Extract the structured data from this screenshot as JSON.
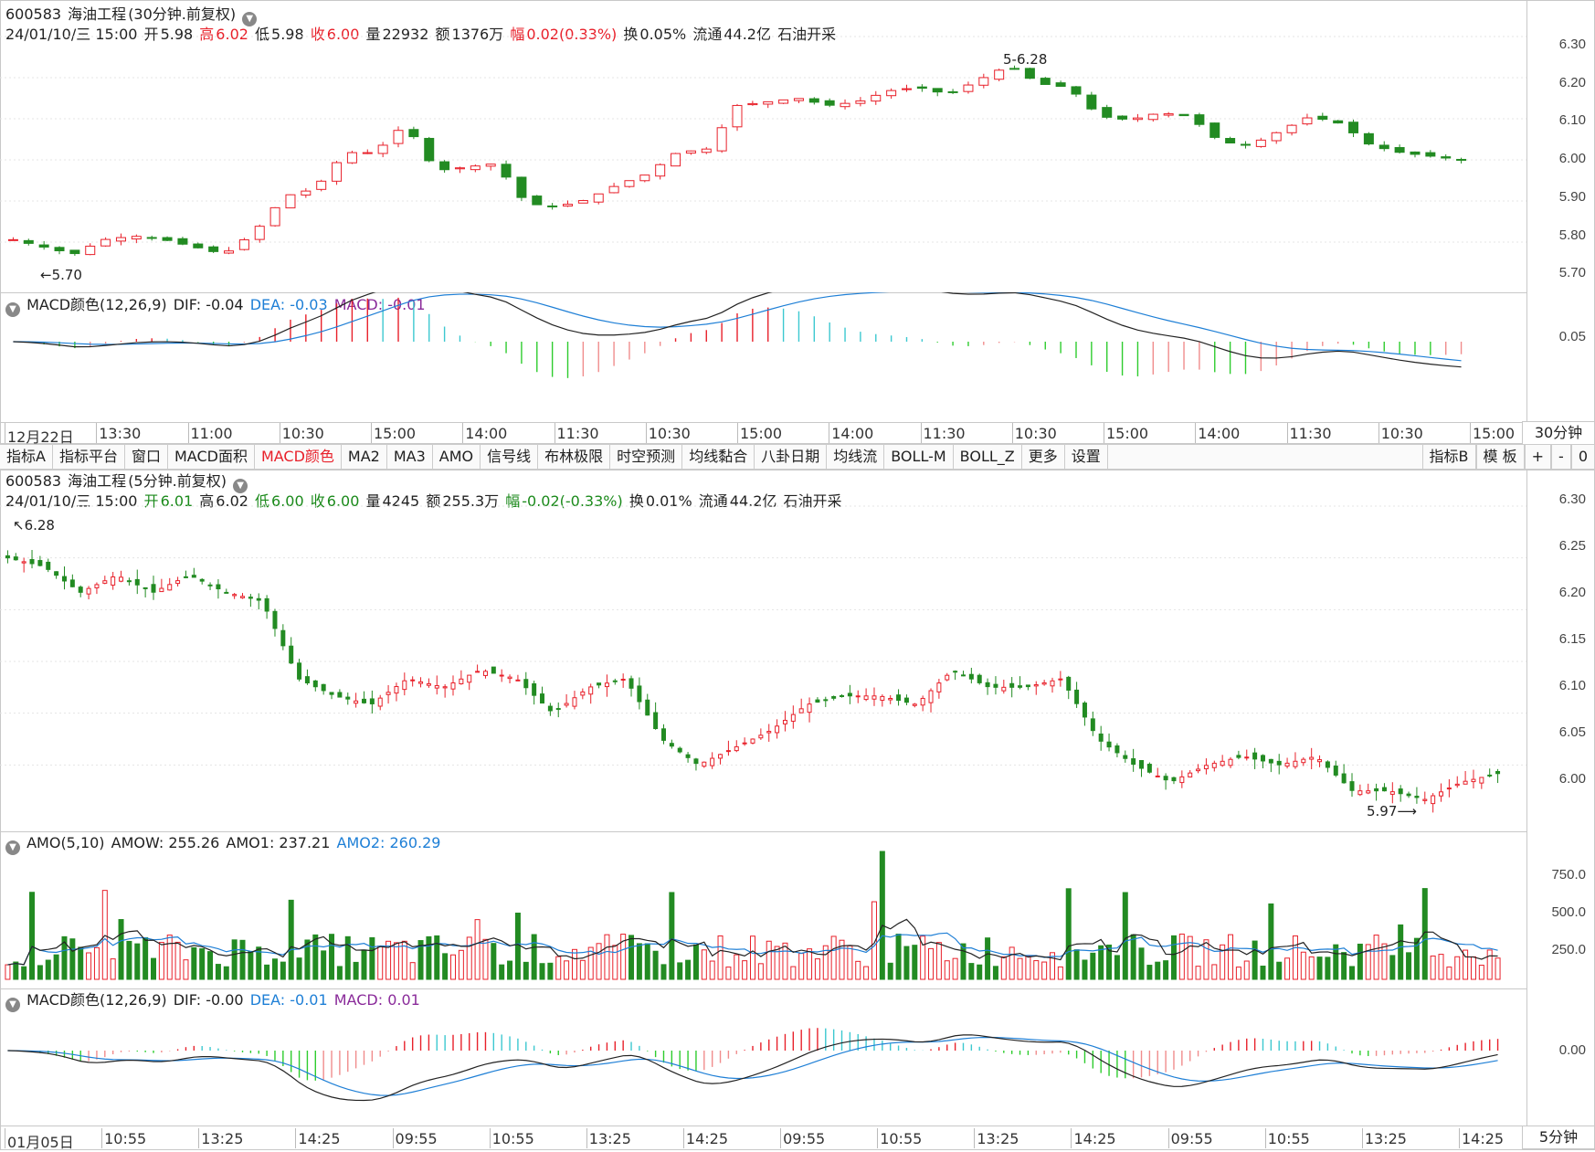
{
  "top_chart": {
    "header1": {
      "code": "600583",
      "name": "海油工程",
      "mode": "(30分钟.前复权)"
    },
    "header2": {
      "date": "24/01/10/三 15:00",
      "open_label": "开",
      "open": "5.98",
      "high_label": "高",
      "high": "6.02",
      "low_label": "低",
      "low": "5.98",
      "close_label": "收",
      "close": "6.00",
      "vol_label": "量",
      "vol": "22932",
      "amt_label": "额",
      "amt": "1376万",
      "chg_label": "幅",
      "chg": "0.02(0.33%)",
      "turn_label": "换",
      "turn": "0.05%",
      "float_label": "流通",
      "float": "44.2亿",
      "industry": "石油开采"
    },
    "y_ticks": [
      "6.30",
      "6.20",
      "6.10",
      "6.00",
      "5.90",
      "5.80",
      "5.70"
    ],
    "annot_high": "6.28",
    "annot_low": "5.70",
    "macd": {
      "title": "MACD颜色(12,26,9)",
      "dif": "DIF: -0.04",
      "dea": "DEA: -0.03",
      "macd": "MACD: -0.01",
      "y_tick": "0.05"
    },
    "x_labels": [
      "12月22日",
      "13:30",
      "11:00",
      "10:30",
      "15:00",
      "14:00",
      "11:30",
      "10:30",
      "15:00",
      "14:00",
      "11:30",
      "10:30",
      "15:00",
      "14:00",
      "11:30",
      "10:30",
      "15:00"
    ],
    "period": "30分钟"
  },
  "toolbar": {
    "tabs": [
      "指标A",
      "指标平台",
      "窗口",
      "MACD面积",
      "MACD颜色",
      "MA2",
      "MA3",
      "AMO",
      "信号线",
      "布林极限",
      "时空预测",
      "均线黏合",
      "八卦日期",
      "均线流",
      "BOLL-M",
      "BOLL_Z",
      "更多",
      "设置"
    ],
    "active": "MACD颜色",
    "right_tabs": [
      "指标B",
      "模 板",
      "+",
      "-",
      "0"
    ]
  },
  "bottom_chart": {
    "header1": {
      "code": "600583",
      "name": "海油工程",
      "mode": "(5分钟.前复权)"
    },
    "header2": {
      "date": "24/01/10/三 15:00",
      "open_label": "开",
      "open": "6.01",
      "high_label": "高",
      "high": "6.02",
      "low_label": "低",
      "low": "6.00",
      "close_label": "收",
      "close": "6.00",
      "vol_label": "量",
      "vol": "4245",
      "amt_label": "额",
      "amt": "255.3万",
      "chg_label": "幅",
      "chg": "-0.02(-0.33%)",
      "turn_label": "换",
      "turn": "0.01%",
      "float_label": "流通",
      "float": "44.2亿",
      "industry": "石油开采"
    },
    "y_ticks": [
      "6.30",
      "6.25",
      "6.20",
      "6.15",
      "6.10",
      "6.05",
      "6.00"
    ],
    "annot_high": "6.28",
    "annot_low": "5.97",
    "amo": {
      "title": "AMO(5,10)",
      "amow": "AMOW: 255.26",
      "amo1": "AMO1: 237.21",
      "amo2": "AMO2: 260.29",
      "y_ticks": [
        "750.0",
        "500.0",
        "250.0"
      ]
    },
    "macd": {
      "title": "MACD颜色(12,26,9)",
      "dif": "DIF: -0.00",
      "dea": "DEA: -0.01",
      "macd": "MACD: 0.01",
      "y_tick": "0.00"
    },
    "x_labels": [
      "01月05日",
      "10:55",
      "13:25",
      "14:25",
      "09:55",
      "10:55",
      "13:25",
      "14:25",
      "09:55",
      "10:55",
      "13:25",
      "14:25",
      "09:55",
      "10:55",
      "13:25",
      "14:25"
    ],
    "period": "5分钟"
  },
  "colors": {
    "up": "#e8202a",
    "down": "#228b22",
    "dif": "#222222",
    "dea": "#1e7fd6",
    "macd_cyan": "#3cc8d0",
    "macd_green": "#2ecc2e"
  }
}
